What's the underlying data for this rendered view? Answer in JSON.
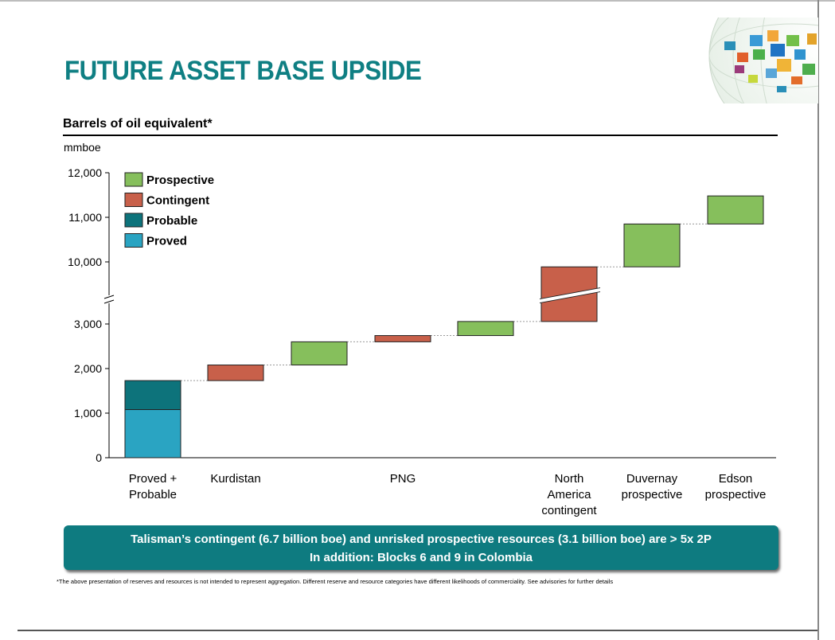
{
  "page": {
    "title": "FUTURE ASSET BASE UPSIDE",
    "subtitle": "Barrels of oil equivalent*",
    "unit": "mmboe",
    "banner_line1": "Talisman’s contingent (6.7 billion boe) and unrisked prospective resources (3.1 billion boe) are > 5x 2P",
    "banner_line2": "In addition: Blocks 6 and 9 in Colombia",
    "footnote": "*The above presentation of reserves and resources is not intended to represent aggregation. Different reserve and resource categories have different likelihoods of commerciality. See advisories for further details"
  },
  "colors": {
    "title": "#0f7f83",
    "Prospective": "#86bf5c",
    "Contingent": "#c8604a",
    "Probable": "#0d737b",
    "Proved": "#2aa4c2",
    "banner": "#0e7b80"
  },
  "chart_data": {
    "type": "waterfall",
    "ylabel": "mmboe",
    "axis_break": true,
    "lower_segment_ylim": [
      0,
      3000
    ],
    "upper_segment_ylim": [
      10000,
      12000
    ],
    "yticks_lower": [
      "0",
      "1,000",
      "2,000",
      "3,000"
    ],
    "yticks_upper": [
      "10,000",
      "11,000",
      "12,000"
    ],
    "legend": [
      "Prospective",
      "Contingent",
      "Probable",
      "Proved"
    ],
    "legend_position": "top-left",
    "categories": [
      "Proved + Probable",
      "Kurdistan",
      "",
      "PNG",
      "",
      "North America contingent",
      "Duvernay prospective",
      "Edson prospective"
    ],
    "category_labels": [
      [
        "Proved +",
        "Probable"
      ],
      [
        "Kurdistan"
      ],
      [],
      [
        "PNG"
      ],
      [],
      [
        "North",
        "America",
        "contingent"
      ],
      [
        "Duvernay",
        "prospective"
      ],
      [
        "Edson",
        "prospective"
      ]
    ],
    "bars": [
      {
        "category": 0,
        "segments": [
          {
            "type": "Proved",
            "start": 0,
            "end": 1080
          },
          {
            "type": "Probable",
            "start": 1080,
            "end": 1730
          }
        ]
      },
      {
        "category": 1,
        "segments": [
          {
            "type": "Contingent",
            "start": 1730,
            "end": 2080
          }
        ]
      },
      {
        "category": 2,
        "segments": [
          {
            "type": "Prospective",
            "start": 2080,
            "end": 2600
          }
        ]
      },
      {
        "category": 3,
        "segments": [
          {
            "type": "Contingent",
            "start": 2600,
            "end": 2740
          }
        ]
      },
      {
        "category": 4,
        "segments": [
          {
            "type": "Prospective",
            "start": 2740,
            "end": 3280
          }
        ]
      },
      {
        "category": 5,
        "segments": [
          {
            "type": "Contingent",
            "start": 3280,
            "end": 9440,
            "broken": true
          }
        ]
      },
      {
        "category": 6,
        "segments": [
          {
            "type": "Prospective",
            "start": 9440,
            "end": 10850
          }
        ]
      },
      {
        "category": 7,
        "segments": [
          {
            "type": "Prospective",
            "start": 10850,
            "end": 11480
          }
        ]
      }
    ]
  }
}
